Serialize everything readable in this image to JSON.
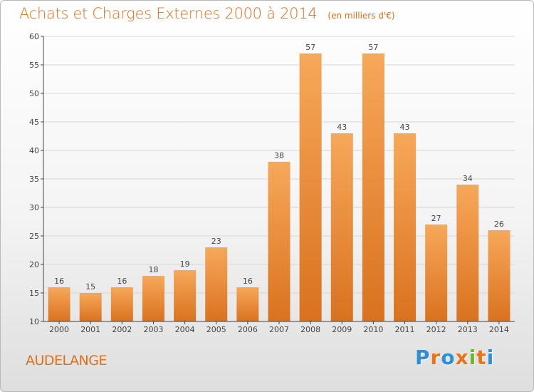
{
  "header": {
    "title": "Achats et Charges Externes 2000 à 2014",
    "unit": "(en milliers d'€)"
  },
  "footer": {
    "place": "AUDELANGE",
    "brand": "Proxiti",
    "brand_colors": [
      "#2e8fd6",
      "#e8731a",
      "#2e8fd6",
      "#e8731a",
      "#6bb82d",
      "#e8731a",
      "#2e8fd6"
    ]
  },
  "chart_data": {
    "type": "bar",
    "title": "Achats et Charges Externes 2000 à 2014",
    "subtitle": "(en milliers d'€)",
    "xlabel": "",
    "ylabel": "",
    "categories": [
      "2000",
      "2001",
      "2002",
      "2003",
      "2004",
      "2005",
      "2006",
      "2007",
      "2008",
      "2009",
      "2010",
      "2011",
      "2012",
      "2013",
      "2014"
    ],
    "values": [
      16,
      15,
      16,
      18,
      19,
      23,
      16,
      38,
      57,
      43,
      57,
      43,
      27,
      34,
      26
    ],
    "ylim": [
      10,
      60
    ],
    "yticks": [
      10,
      15,
      20,
      25,
      30,
      35,
      40,
      45,
      50,
      55,
      60
    ],
    "grid": true,
    "legend": "none",
    "data_labels": true,
    "colors": {
      "bar_light": "#f7a85a",
      "bar_dark": "#d9721e",
      "grid": "#d6d6d6",
      "axis": "#444444",
      "text": "#444444"
    }
  }
}
